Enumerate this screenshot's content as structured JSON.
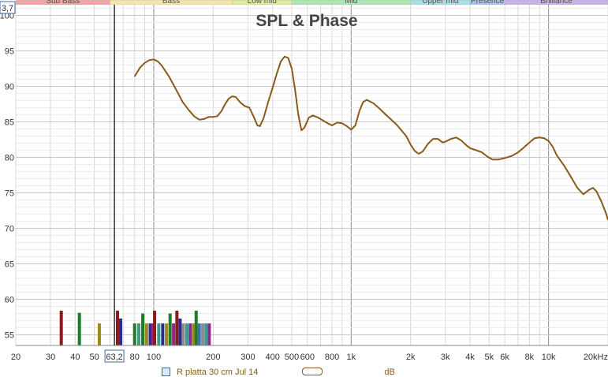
{
  "chart_data": {
    "type": "line",
    "title": "SPL & Phase",
    "x_scale": "log",
    "xlim": [
      20,
      20000
    ],
    "ylim": [
      53.5,
      101.5
    ],
    "grid": true,
    "x_ticks": [
      "20",
      "30",
      "40",
      "50",
      "63,2",
      "80",
      "100",
      "200",
      "300",
      "400",
      "500",
      "600",
      "800",
      "1k",
      "2k",
      "3k",
      "4k",
      "5k",
      "6k",
      "8k",
      "10k",
      "20kHz"
    ],
    "y_ticks": [
      "55",
      "60",
      "65",
      "70",
      "75",
      "80",
      "85",
      "90",
      "95",
      "100"
    ],
    "cursor": {
      "x_label": "63,2",
      "y_label": "3,7",
      "x": 63.2
    },
    "bands": [
      {
        "label": "Sub Bass",
        "from": 20,
        "to": 60,
        "color": "#f2a3a3"
      },
      {
        "label": "Bass",
        "from": 60,
        "to": 250,
        "color": "#f5e6a6"
      },
      {
        "label": "Low mid",
        "from": 250,
        "to": 500,
        "color": "#d9ec9a"
      },
      {
        "label": "Mid",
        "from": 500,
        "to": 2000,
        "color": "#a9e6b0"
      },
      {
        "label": "Upper mid",
        "from": 2000,
        "to": 4000,
        "color": "#a7dfe3"
      },
      {
        "label": "Presence",
        "from": 4000,
        "to": 6000,
        "color": "#a9c3ee"
      },
      {
        "label": "Brilliance",
        "from": 6000,
        "to": 20000,
        "color": "#c7b1e6"
      }
    ],
    "series": [
      {
        "color": "#8a5a1a",
        "points": [
          [
            80,
            91.4
          ],
          [
            85,
            92.6
          ],
          [
            90,
            93.3
          ],
          [
            95,
            93.7
          ],
          [
            100,
            93.8
          ],
          [
            105,
            93.5
          ],
          [
            110,
            92.9
          ],
          [
            120,
            91.3
          ],
          [
            130,
            89.5
          ],
          [
            140,
            87.8
          ],
          [
            150,
            86.7
          ],
          [
            160,
            85.8
          ],
          [
            170,
            85.3
          ],
          [
            180,
            85.4
          ],
          [
            190,
            85.7
          ],
          [
            200,
            85.7
          ],
          [
            210,
            85.8
          ],
          [
            220,
            86.5
          ],
          [
            230,
            87.5
          ],
          [
            240,
            88.3
          ],
          [
            250,
            88.6
          ],
          [
            260,
            88.5
          ],
          [
            275,
            87.7
          ],
          [
            290,
            87.2
          ],
          [
            305,
            87.0
          ],
          [
            320,
            85.8
          ],
          [
            335,
            84.5
          ],
          [
            345,
            84.4
          ],
          [
            360,
            85.5
          ],
          [
            380,
            87.8
          ],
          [
            400,
            89.8
          ],
          [
            420,
            91.8
          ],
          [
            440,
            93.5
          ],
          [
            460,
            94.2
          ],
          [
            480,
            94.0
          ],
          [
            500,
            92.5
          ],
          [
            520,
            89.5
          ],
          [
            540,
            86.0
          ],
          [
            560,
            83.8
          ],
          [
            580,
            84.2
          ],
          [
            610,
            85.6
          ],
          [
            640,
            85.9
          ],
          [
            680,
            85.6
          ],
          [
            720,
            85.2
          ],
          [
            760,
            84.8
          ],
          [
            800,
            84.5
          ],
          [
            850,
            84.9
          ],
          [
            900,
            84.8
          ],
          [
            950,
            84.4
          ],
          [
            1000,
            83.9
          ],
          [
            1050,
            84.5
          ],
          [
            1100,
            86.5
          ],
          [
            1150,
            87.8
          ],
          [
            1200,
            88.1
          ],
          [
            1300,
            87.6
          ],
          [
            1400,
            86.8
          ],
          [
            1500,
            86.0
          ],
          [
            1700,
            84.6
          ],
          [
            1900,
            83.0
          ],
          [
            2000,
            81.8
          ],
          [
            2100,
            80.9
          ],
          [
            2200,
            80.5
          ],
          [
            2300,
            80.8
          ],
          [
            2450,
            81.9
          ],
          [
            2600,
            82.6
          ],
          [
            2750,
            82.6
          ],
          [
            2900,
            82.1
          ],
          [
            3000,
            82.2
          ],
          [
            3200,
            82.6
          ],
          [
            3400,
            82.8
          ],
          [
            3600,
            82.4
          ],
          [
            3800,
            81.8
          ],
          [
            4000,
            81.3
          ],
          [
            4300,
            81.0
          ],
          [
            4600,
            80.7
          ],
          [
            4900,
            80.1
          ],
          [
            5200,
            79.7
          ],
          [
            5600,
            79.7
          ],
          [
            6000,
            79.9
          ],
          [
            6500,
            80.2
          ],
          [
            7000,
            80.7
          ],
          [
            7500,
            81.4
          ],
          [
            8000,
            82.1
          ],
          [
            8500,
            82.7
          ],
          [
            9000,
            82.8
          ],
          [
            9500,
            82.7
          ],
          [
            10000,
            82.3
          ],
          [
            10500,
            81.5
          ],
          [
            11000,
            80.3
          ],
          [
            12000,
            78.8
          ],
          [
            13000,
            77.2
          ],
          [
            14000,
            75.7
          ],
          [
            15000,
            74.8
          ],
          [
            16000,
            75.4
          ],
          [
            16800,
            75.7
          ],
          [
            17500,
            75.2
          ],
          [
            18500,
            73.8
          ],
          [
            19500,
            72.2
          ],
          [
            20000,
            71.2
          ]
        ]
      }
    ],
    "markers": [
      {
        "x": 34,
        "top": 58.4,
        "color": "#8b1a1a"
      },
      {
        "x": 42,
        "top": 58.1,
        "color": "#1f7a2a"
      },
      {
        "x": 53,
        "top": 56.6,
        "color": "#9a8a1e"
      },
      {
        "x": 65.5,
        "top": 58.4,
        "color": "#8b1a1a"
      },
      {
        "x": 68,
        "top": 57.3,
        "color": "#2b2b8f"
      },
      {
        "x": 80,
        "top": 56.6,
        "color": "#1f7a2a"
      },
      {
        "x": 84,
        "top": 56.6,
        "color": "#3a9a8a"
      },
      {
        "x": 88,
        "top": 58.0,
        "color": "#1f7a2a"
      },
      {
        "x": 92,
        "top": 56.6,
        "color": "#9a8a1e"
      },
      {
        "x": 96,
        "top": 56.6,
        "color": "#2b2b8f"
      },
      {
        "x": 99,
        "top": 56.6,
        "color": "#8a2a8a"
      },
      {
        "x": 101,
        "top": 58.4,
        "color": "#8b1a1a"
      },
      {
        "x": 106,
        "top": 56.6,
        "color": "#3a9a8a"
      },
      {
        "x": 111,
        "top": 56.6,
        "color": "#2b2b8f"
      },
      {
        "x": 116,
        "top": 56.6,
        "color": "#9a8a1e"
      },
      {
        "x": 121,
        "top": 58.0,
        "color": "#1f7a2a"
      },
      {
        "x": 126,
        "top": 56.6,
        "color": "#8a2a8a"
      },
      {
        "x": 131,
        "top": 58.4,
        "color": "#8b1a1a"
      },
      {
        "x": 136,
        "top": 57.3,
        "color": "#2b2b8f"
      },
      {
        "x": 141,
        "top": 56.6,
        "color": "#8a8a8a"
      },
      {
        "x": 147,
        "top": 56.6,
        "color": "#3a9a8a"
      },
      {
        "x": 153,
        "top": 56.6,
        "color": "#8a2a8a"
      },
      {
        "x": 159,
        "top": 56.6,
        "color": "#9a8a1e"
      },
      {
        "x": 164,
        "top": 58.4,
        "color": "#1f7a2a"
      },
      {
        "x": 170,
        "top": 56.6,
        "color": "#3a6ea5"
      },
      {
        "x": 177,
        "top": 56.6,
        "color": "#8a8a8a"
      },
      {
        "x": 184,
        "top": 56.6,
        "color": "#3a9a8a"
      },
      {
        "x": 191,
        "top": 56.6,
        "color": "#8a2a8a"
      }
    ]
  },
  "legend": {
    "series_label": "R platta 30 cm Jul 14",
    "unit_label": "dB"
  }
}
